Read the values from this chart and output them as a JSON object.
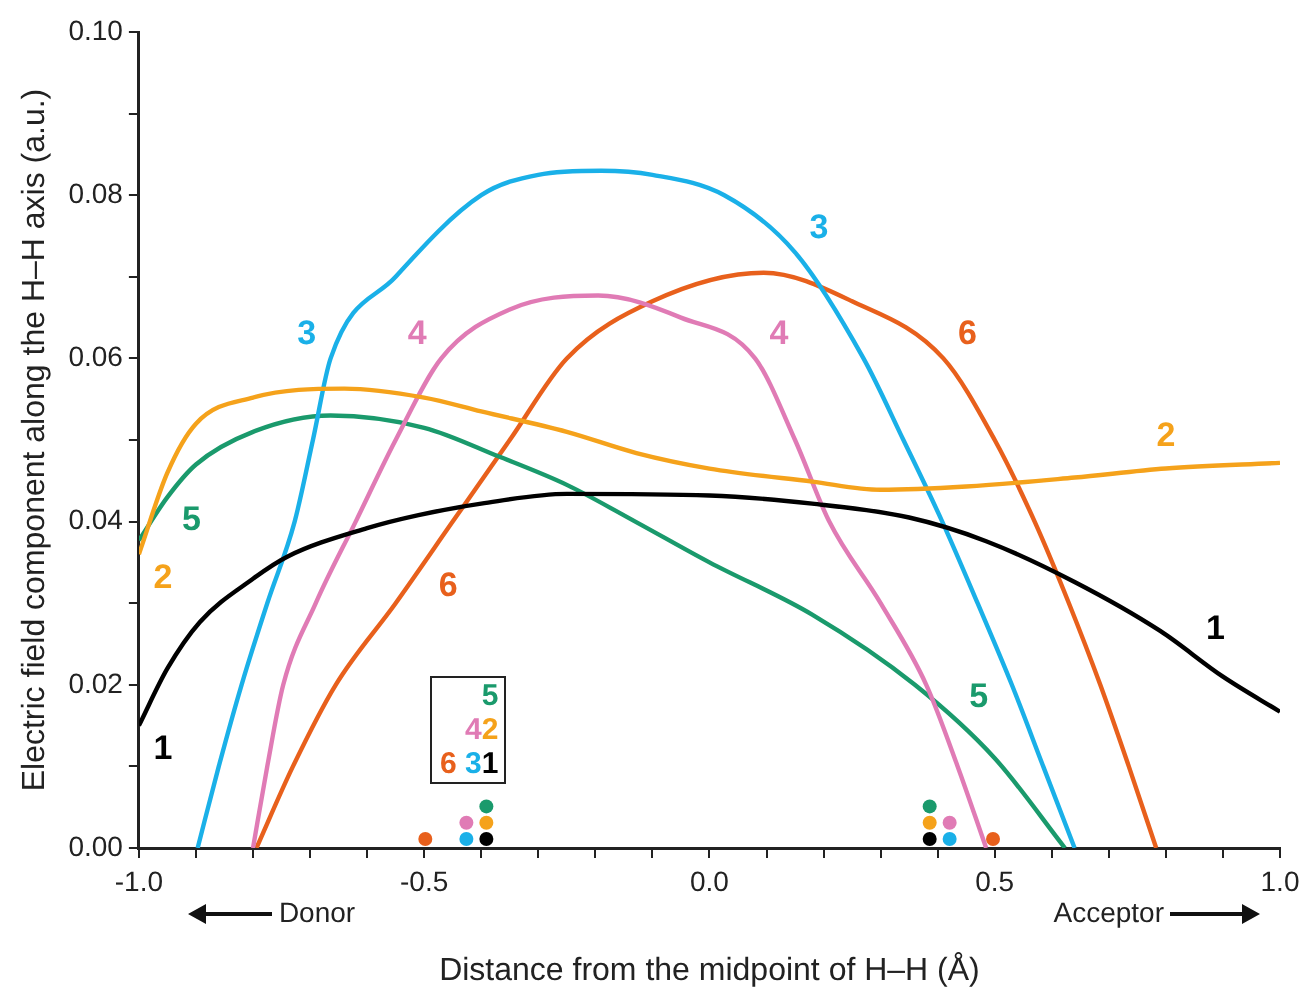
{
  "chart_data": {
    "type": "line",
    "xlabel": "Distance from the midpoint of H–H (Å)",
    "ylabel": "Electric field component along the H–H axis (a.u.)",
    "xlim": [
      -1,
      1
    ],
    "ylim": [
      0,
      0.1
    ],
    "xticks": [
      {
        "value": -1,
        "label": "-1.0"
      },
      {
        "value": -0.9,
        "label": null
      },
      {
        "value": -0.8,
        "label": null
      },
      {
        "value": -0.7,
        "label": null
      },
      {
        "value": -0.6,
        "label": null
      },
      {
        "value": -0.5,
        "label": "-0.5"
      },
      {
        "value": -0.4,
        "label": null
      },
      {
        "value": -0.3,
        "label": null
      },
      {
        "value": -0.2,
        "label": null
      },
      {
        "value": -0.1,
        "label": null
      },
      {
        "value": 0,
        "label": "0.0"
      },
      {
        "value": 0.1,
        "label": null
      },
      {
        "value": 0.2,
        "label": null
      },
      {
        "value": 0.3,
        "label": null
      },
      {
        "value": 0.4,
        "label": null
      },
      {
        "value": 0.5,
        "label": "0.5"
      },
      {
        "value": 0.6,
        "label": null
      },
      {
        "value": 0.7,
        "label": null
      },
      {
        "value": 0.8,
        "label": null
      },
      {
        "value": 0.9,
        "label": null
      },
      {
        "value": 1,
        "label": "1.0"
      }
    ],
    "yticks": [
      {
        "value": 0,
        "label": "0.00"
      },
      {
        "value": 0.01,
        "label": null
      },
      {
        "value": 0.02,
        "label": "0.02"
      },
      {
        "value": 0.03,
        "label": null
      },
      {
        "value": 0.04,
        "label": "0.04"
      },
      {
        "value": 0.05,
        "label": null
      },
      {
        "value": 0.06,
        "label": "0.06"
      },
      {
        "value": 0.07,
        "label": null
      },
      {
        "value": 0.08,
        "label": "0.08"
      },
      {
        "value": 0.09,
        "label": null
      },
      {
        "value": 0.1,
        "label": "0.10"
      }
    ],
    "grid": false,
    "legend": false,
    "marker": "none",
    "line_style": "solid",
    "series": [
      {
        "name": "1",
        "color": "#000000",
        "x": [
          -1,
          -0.95,
          -0.893,
          -0.8,
          -0.74,
          -0.6,
          -0.51,
          -0.4,
          -0.25,
          0,
          0.18,
          0.35,
          0.485,
          0.64,
          0.79,
          0.9,
          1
        ],
        "values": [
          0.015,
          0.022,
          0.0277,
          0.033,
          0.0357,
          0.0392,
          0.0408,
          0.0422,
          0.0434,
          0.0432,
          0.0422,
          0.0405,
          0.0376,
          0.0326,
          0.0266,
          0.021,
          0.0167
        ]
      },
      {
        "name": "2",
        "color": "#f5a21b",
        "x": [
          -1,
          -0.95,
          -0.9,
          -0.8,
          -0.64,
          -0.5,
          -0.4,
          -0.25,
          -0.128,
          0,
          0.18,
          0.3,
          0.45,
          0.64,
          0.8,
          1
        ],
        "values": [
          0.036,
          0.046,
          0.052,
          0.0552,
          0.0563,
          0.0552,
          0.0535,
          0.051,
          0.0484,
          0.0465,
          0.0449,
          0.0439,
          0.0443,
          0.0454,
          0.0465,
          0.0472
        ]
      },
      {
        "name": "3",
        "color": "#1ab0e8",
        "x": [
          -0.897,
          -0.86,
          -0.82,
          -0.775,
          -0.727,
          -0.695,
          -0.664,
          -0.55,
          -0.4,
          -0.3,
          -0.19,
          -0.1,
          0.026,
          0.15,
          0.27,
          0.34,
          0.408,
          0.47,
          0.53,
          0.585,
          0.64
        ],
        "values": [
          0,
          0.01,
          0.02,
          0.03,
          0.04,
          0.05,
          0.06,
          0.07,
          0.08,
          0.0825,
          0.083,
          0.0825,
          0.08,
          0.073,
          0.06,
          0.05,
          0.04,
          0.03,
          0.02,
          0.01,
          0
        ]
      },
      {
        "name": "4",
        "color": "#e07bb5",
        "x": [
          -0.8,
          -0.775,
          -0.747,
          -0.69,
          -0.62,
          -0.55,
          -0.47,
          -0.35,
          -0.195,
          -0.05,
          0.08,
          0.15,
          0.21,
          0.3,
          0.38,
          0.435,
          0.485
        ],
        "values": [
          0,
          0.01,
          0.02,
          0.03,
          0.04,
          0.05,
          0.06,
          0.066,
          0.0677,
          0.065,
          0.06,
          0.05,
          0.04,
          0.03,
          0.02,
          0.01,
          0
        ]
      },
      {
        "name": "5",
        "color": "#1a9a6c",
        "x": [
          -1,
          -0.95,
          -0.9,
          -0.8,
          -0.664,
          -0.5,
          -0.37,
          -0.25,
          -0.13,
          0,
          0.18,
          0.36,
          0.5,
          0.623
        ],
        "values": [
          0.0377,
          0.043,
          0.047,
          0.051,
          0.053,
          0.0515,
          0.048,
          0.0445,
          0.04,
          0.035,
          0.0286,
          0.02,
          0.011,
          0
        ]
      },
      {
        "name": "6",
        "color": "#e8601c",
        "x": [
          -0.794,
          -0.73,
          -0.655,
          -0.55,
          -0.45,
          -0.35,
          -0.25,
          -0.1,
          0.095,
          0.25,
          0.41,
          0.5,
          0.57,
          0.63,
          0.685,
          0.735,
          0.783
        ],
        "values": [
          0,
          0.01,
          0.02,
          0.03,
          0.04,
          0.05,
          0.06,
          0.067,
          0.0705,
          0.067,
          0.06,
          0.05,
          0.04,
          0.03,
          0.02,
          0.01,
          0
        ]
      },
      {
        "type": "scatter",
        "marker": "circle",
        "x": [
          -0.498,
          -0.426,
          -0.426,
          -0.391,
          -0.391,
          -0.391,
          0.386,
          0.386,
          0.386,
          0.421,
          0.421,
          0.497
        ],
        "values": [
          0.0011,
          0.0011,
          0.0031,
          0.0011,
          0.0031,
          0.0051,
          0.0011,
          0.0031,
          0.0051,
          0.0011,
          0.0031,
          0.0011
        ],
        "colors": [
          "#e8601c",
          "#1ab0e8",
          "#e07bb5",
          "#000000",
          "#f5a21b",
          "#1a9a6c",
          "#000000",
          "#f5a21b",
          "#1a9a6c",
          "#1ab0e8",
          "#e07bb5",
          "#e8601c"
        ]
      }
    ],
    "annotations": [
      "5",
      "42",
      "6 31",
      "Donor",
      "Acceptor"
    ]
  }
}
